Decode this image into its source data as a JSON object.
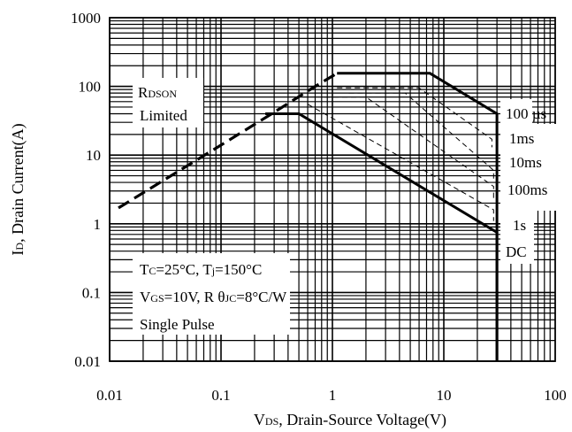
{
  "chart_data": {
    "type": "line",
    "xlabel": {
      "main": "V",
      "sub": "DS",
      "rest": ", Drain-Source Voltage(V)"
    },
    "ylabel": {
      "main": "I",
      "sub": "D",
      "rest": ", Drain Current(A)"
    },
    "x_scale": "log",
    "y_scale": "log",
    "xlim": [
      0.01,
      100
    ],
    "ylim": [
      0.01,
      1000
    ],
    "x_ticks": [
      0.01,
      0.1,
      1,
      10,
      100
    ],
    "x_tick_labels": [
      "0.01",
      "0.1",
      "1",
      "10",
      "100"
    ],
    "y_ticks": [
      0.01,
      0.1,
      1,
      10,
      100,
      1000
    ],
    "y_tick_labels": [
      "0.01",
      "0.1",
      "1",
      "10",
      "100",
      "1000"
    ],
    "grid": true,
    "series": [
      {
        "name": "RDS(ON) Limited",
        "style": "dashed-bold",
        "x": [
          0.012,
          0.1,
          0.3,
          0.7,
          1.1
        ],
        "y": [
          1.7,
          14,
          42,
          100,
          155
        ]
      },
      {
        "name": "100 µs",
        "style": "solid",
        "x": [
          1.1,
          7.5,
          30,
          30
        ],
        "y": [
          155,
          155,
          40,
          0.01
        ]
      },
      {
        "name": "1ms",
        "style": "dashed-thin",
        "x": [
          1.1,
          6,
          27,
          27
        ],
        "y": [
          95,
          95,
          17,
          13
        ]
      },
      {
        "name": "10ms",
        "style": "dashed-thin",
        "x": [
          1.4,
          4.5,
          28,
          28
        ],
        "y": [
          80,
          80,
          6,
          4
        ]
      },
      {
        "name": "100ms",
        "style": "dashed-thin",
        "x": [
          0.85,
          2,
          28,
          28
        ],
        "y": [
          70,
          70,
          3.5,
          2.2
        ]
      },
      {
        "name": "1s",
        "style": "dashed-thin",
        "x": [
          0.6,
          28,
          28
        ],
        "y": [
          55,
          1.6,
          1.1
        ]
      },
      {
        "name": "DC",
        "style": "solid",
        "x": [
          0.25,
          0.5,
          30,
          30
        ],
        "y": [
          40,
          40,
          0.75,
          0.01
        ]
      }
    ],
    "annotations": {
      "rdson_line1": "RDSON",
      "rdson_line2": "Limited",
      "conditions": {
        "tc": {
          "main": "T",
          "sub": "C",
          "rest": "=25°C, T"
        },
        "tj": {
          "sub": "j",
          "rest": "=150°C"
        },
        "vgs": {
          "main": "V",
          "sub": "GS",
          "rest": "=10V, R"
        },
        "theta": {
          "main": "θ",
          "sub": "JC",
          "rest": "=8°C/W"
        },
        "pulse": "Single Pulse"
      },
      "curve_labels": [
        "100 µs",
        "1ms",
        "10ms",
        "100ms",
        "1s",
        "DC"
      ]
    }
  }
}
